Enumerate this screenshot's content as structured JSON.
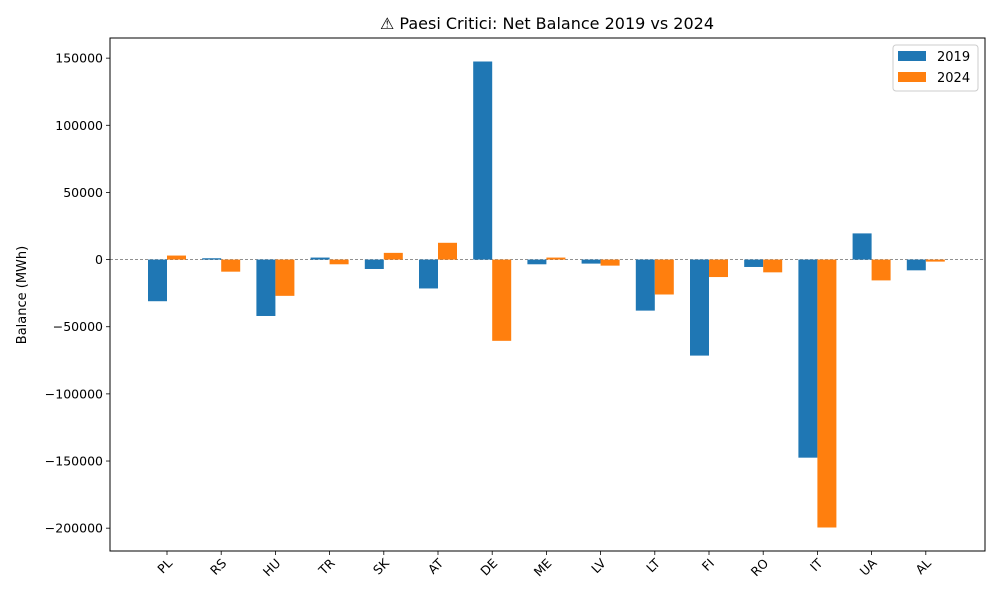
{
  "chart_data": {
    "type": "bar",
    "title": "⚠ Paesi Critici: Net Balance 2019 vs 2024",
    "xlabel": "",
    "ylabel": "Balance (MWh)",
    "ylim": [
      -217000,
      165000
    ],
    "yticks": [
      150000,
      100000,
      50000,
      0,
      -50000,
      -100000,
      -150000,
      -200000
    ],
    "ytick_labels": [
      "150000",
      "100000",
      "50000",
      "0",
      "−50000",
      "−100000",
      "−150000",
      "−200000"
    ],
    "grid": false,
    "zero_line": "dashed",
    "legend_position": "top-right",
    "categories": [
      "PL",
      "RS",
      "HU",
      "TR",
      "SK",
      "AT",
      "DE",
      "ME",
      "LV",
      "LT",
      "FI",
      "RO",
      "IT",
      "UA",
      "AL"
    ],
    "series": [
      {
        "name": "2019",
        "color": "#1f77b4",
        "values": [
          -31000,
          1000,
          -42000,
          1500,
          -7000,
          -21500,
          147500,
          -3500,
          -3000,
          -38000,
          -71500,
          -5500,
          -147500,
          19500,
          -8000
        ]
      },
      {
        "name": "2024",
        "color": "#ff7f0e",
        "values": [
          3000,
          -9000,
          -27000,
          -3500,
          5000,
          12500,
          -60500,
          1500,
          -4500,
          -26000,
          -13000,
          -9500,
          -199500,
          -15500,
          -1500
        ]
      }
    ]
  }
}
